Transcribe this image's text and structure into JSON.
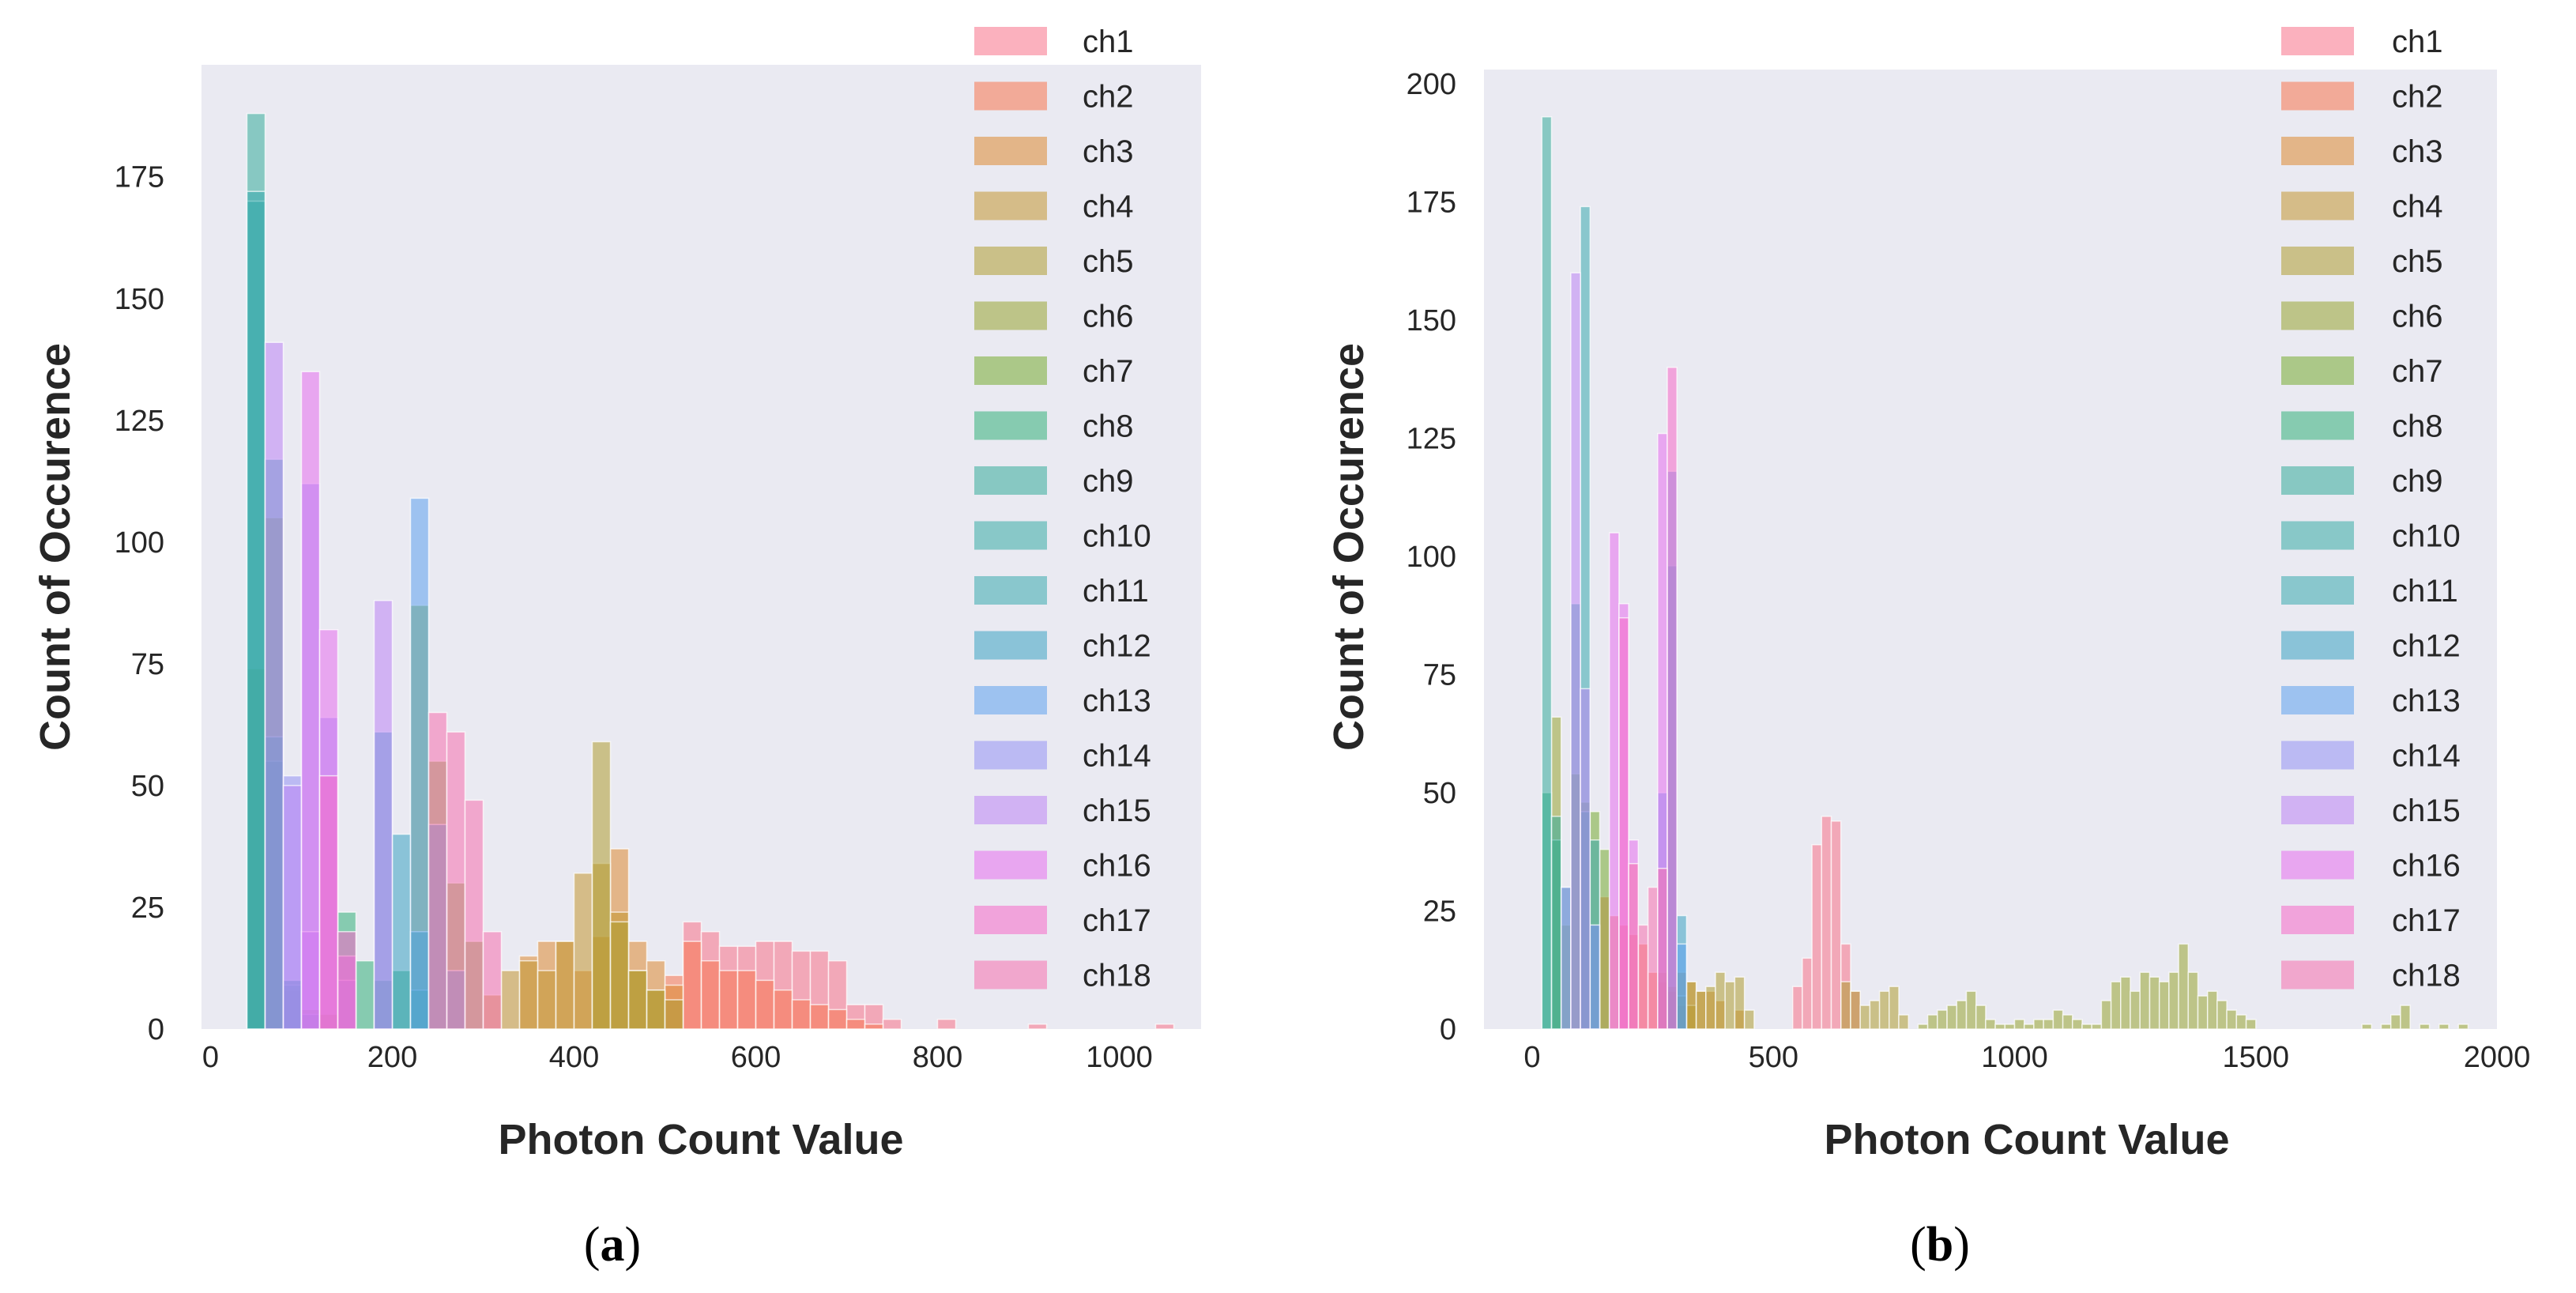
{
  "figure": {
    "caption_a": "a",
    "caption_b": "b"
  },
  "chart_data": [
    {
      "id": "a",
      "type": "histogram",
      "xlabel": "Photon Count Value",
      "ylabel": "Count of Occurence",
      "xlim": [
        -10,
        1090
      ],
      "ylim": [
        0,
        198
      ],
      "xticks": [
        0,
        200,
        400,
        600,
        800,
        1000
      ],
      "yticks": [
        0,
        25,
        50,
        75,
        100,
        125,
        150,
        175
      ],
      "bin_width": 20,
      "grid": false,
      "legend": "upper-right-outside",
      "series": [
        {
          "name": "ch1",
          "bars": [
            [
              520,
              22
            ],
            [
              540,
              20
            ],
            [
              560,
              17
            ],
            [
              580,
              17
            ],
            [
              600,
              18
            ],
            [
              620,
              18
            ],
            [
              640,
              16
            ],
            [
              660,
              16
            ],
            [
              680,
              14
            ],
            [
              700,
              5
            ],
            [
              720,
              5
            ],
            [
              740,
              2
            ],
            [
              800,
              2
            ],
            [
              900,
              1
            ],
            [
              1040,
              1
            ]
          ]
        },
        {
          "name": "ch2",
          "bars": [
            [
              500,
              11
            ],
            [
              520,
              18
            ],
            [
              540,
              14
            ],
            [
              560,
              12
            ],
            [
              580,
              12
            ],
            [
              600,
              10
            ],
            [
              620,
              8
            ],
            [
              640,
              6
            ],
            [
              660,
              5
            ],
            [
              680,
              4
            ],
            [
              700,
              2
            ],
            [
              720,
              1
            ]
          ]
        },
        {
          "name": "ch3",
          "bars": [
            [
              340,
              15
            ],
            [
              360,
              18
            ],
            [
              380,
              18
            ],
            [
              400,
              12
            ],
            [
              420,
              19
            ],
            [
              440,
              37
            ],
            [
              460,
              18
            ],
            [
              480,
              14
            ],
            [
              500,
              9
            ]
          ]
        },
        {
          "name": "ch4",
          "bars": [
            [
              300,
              7
            ],
            [
              320,
              12
            ],
            [
              340,
              14
            ],
            [
              360,
              12
            ],
            [
              380,
              18
            ],
            [
              400,
              32
            ],
            [
              420,
              34
            ],
            [
              440,
              24
            ],
            [
              460,
              12
            ],
            [
              480,
              8
            ]
          ]
        },
        {
          "name": "ch5",
          "bars": [
            [
              420,
              59
            ],
            [
              440,
              22
            ],
            [
              460,
              12
            ],
            [
              480,
              8
            ],
            [
              500,
              6
            ]
          ]
        },
        {
          "name": "ch6",
          "bars": [
            [
              40,
              74
            ],
            [
              60,
              105
            ],
            [
              80,
              8
            ],
            [
              100,
              4
            ],
            [
              120,
              3
            ]
          ]
        },
        {
          "name": "ch7",
          "bars": [
            [
              220,
              87
            ],
            [
              240,
              55
            ],
            [
              260,
              30
            ],
            [
              280,
              18
            ]
          ]
        },
        {
          "name": "ch8",
          "bars": [
            [
              140,
              24
            ],
            [
              160,
              14
            ],
            [
              180,
              10
            ],
            [
              200,
              12
            ],
            [
              220,
              8
            ]
          ]
        },
        {
          "name": "ch9",
          "bars": [
            [
              40,
              188
            ],
            [
              60,
              55
            ],
            [
              80,
              10
            ],
            [
              100,
              3
            ]
          ]
        },
        {
          "name": "ch10",
          "bars": [
            [
              40,
              170
            ],
            [
              60,
              60
            ],
            [
              80,
              9
            ]
          ]
        },
        {
          "name": "ch11",
          "bars": [
            [
              40,
              172
            ],
            [
              60,
              117
            ],
            [
              80,
              10
            ]
          ]
        },
        {
          "name": "ch12",
          "bars": [
            [
              180,
              61
            ],
            [
              200,
              40
            ],
            [
              220,
              20
            ]
          ]
        },
        {
          "name": "ch13",
          "bars": [
            [
              220,
              109
            ],
            [
              240,
              42
            ],
            [
              260,
              12
            ]
          ]
        },
        {
          "name": "ch14",
          "bars": [
            [
              80,
              52
            ],
            [
              100,
              112
            ],
            [
              120,
              64
            ],
            [
              140,
              10
            ]
          ]
        },
        {
          "name": "ch15",
          "bars": [
            [
              60,
              141
            ],
            [
              80,
              50
            ],
            [
              100,
              20
            ],
            [
              180,
              88
            ]
          ]
        },
        {
          "name": "ch16",
          "bars": [
            [
              100,
              135
            ],
            [
              120,
              82
            ],
            [
              140,
              15
            ]
          ]
        },
        {
          "name": "ch17",
          "bars": [
            [
              120,
              52
            ],
            [
              140,
              20
            ]
          ]
        },
        {
          "name": "ch18",
          "bars": [
            [
              240,
              65
            ],
            [
              260,
              61
            ],
            [
              280,
              47
            ],
            [
              300,
              20
            ]
          ]
        }
      ]
    },
    {
      "id": "b",
      "type": "histogram",
      "xlabel": "Photon Count Value",
      "ylabel": "Count of Occurence",
      "xlim": [
        -100,
        2000
      ],
      "ylim": [
        0,
        203
      ],
      "xticks": [
        0,
        500,
        1000,
        1500,
        2000
      ],
      "yticks": [
        0,
        25,
        50,
        75,
        100,
        125,
        150,
        175,
        200
      ],
      "bin_width": 20,
      "grid": false,
      "legend": "upper-right-outside",
      "series": [
        {
          "name": "ch1",
          "bars": [
            [
              540,
              9
            ],
            [
              560,
              15
            ],
            [
              580,
              39
            ],
            [
              600,
              45
            ],
            [
              620,
              44
            ],
            [
              640,
              18
            ],
            [
              660,
              8
            ]
          ]
        },
        {
          "name": "ch2",
          "bars": [
            [
              140,
              28
            ],
            [
              160,
              24
            ],
            [
              180,
              22
            ],
            [
              200,
              20
            ],
            [
              220,
              18
            ],
            [
              240,
              12
            ],
            [
              260,
              10
            ],
            [
              280,
              8
            ],
            [
              300,
              5
            ]
          ]
        },
        {
          "name": "ch3",
          "bars": [
            [
              300,
              12
            ],
            [
              320,
              10
            ],
            [
              340,
              8
            ],
            [
              360,
              8
            ],
            [
              380,
              6
            ],
            [
              420,
              4
            ]
          ]
        },
        {
          "name": "ch4",
          "bars": [
            [
              260,
              12
            ],
            [
              280,
              9
            ],
            [
              300,
              7
            ],
            [
              320,
              5
            ]
          ]
        },
        {
          "name": "ch5",
          "bars": [
            [
              320,
              10
            ],
            [
              340,
              8
            ],
            [
              360,
              9
            ],
            [
              380,
              12
            ],
            [
              400,
              10
            ],
            [
              420,
              11
            ],
            [
              440,
              4
            ],
            [
              640,
              10
            ],
            [
              660,
              8
            ],
            [
              680,
              5
            ],
            [
              700,
              6
            ],
            [
              720,
              8
            ],
            [
              740,
              9
            ],
            [
              760,
              3
            ]
          ]
        },
        {
          "name": "ch6",
          "bars": [
            [
              40,
              66
            ],
            [
              60,
              22
            ],
            [
              800,
              1
            ],
            [
              820,
              3
            ],
            [
              840,
              4
            ],
            [
              860,
              5
            ],
            [
              880,
              6
            ],
            [
              900,
              8
            ],
            [
              920,
              5
            ],
            [
              940,
              2
            ],
            [
              960,
              1
            ],
            [
              980,
              1
            ],
            [
              1000,
              2
            ],
            [
              1020,
              1
            ],
            [
              1040,
              2
            ],
            [
              1060,
              2
            ],
            [
              1080,
              4
            ],
            [
              1100,
              3
            ],
            [
              1120,
              2
            ],
            [
              1140,
              1
            ],
            [
              1160,
              1
            ],
            [
              1180,
              6
            ],
            [
              1200,
              10
            ],
            [
              1220,
              11
            ],
            [
              1240,
              8
            ],
            [
              1260,
              12
            ],
            [
              1280,
              11
            ],
            [
              1300,
              10
            ],
            [
              1320,
              12
            ],
            [
              1340,
              18
            ],
            [
              1360,
              12
            ],
            [
              1380,
              7
            ],
            [
              1400,
              8
            ],
            [
              1420,
              6
            ],
            [
              1440,
              4
            ],
            [
              1460,
              3
            ],
            [
              1480,
              2
            ],
            [
              1720,
              1
            ],
            [
              1760,
              1
            ],
            [
              1780,
              3
            ],
            [
              1800,
              5
            ],
            [
              1840,
              1
            ],
            [
              1880,
              1
            ],
            [
              1920,
              1
            ]
          ]
        },
        {
          "name": "ch7",
          "bars": [
            [
              80,
              54
            ],
            [
              100,
              48
            ],
            [
              120,
              46
            ],
            [
              140,
              38
            ]
          ]
        },
        {
          "name": "ch8",
          "bars": [
            [
              20,
              50
            ],
            [
              40,
              40
            ]
          ]
        },
        {
          "name": "ch9",
          "bars": [
            [
              20,
              193
            ],
            [
              40,
              45
            ],
            [
              60,
              30
            ]
          ]
        },
        {
          "name": "ch10",
          "bars": [
            [
              80,
              90
            ],
            [
              100,
              46
            ],
            [
              120,
              22
            ]
          ]
        },
        {
          "name": "ch11",
          "bars": [
            [
              100,
              174
            ],
            [
              120,
              40
            ]
          ]
        },
        {
          "name": "ch12",
          "bars": [
            [
              280,
              98
            ],
            [
              300,
              24
            ]
          ]
        },
        {
          "name": "ch13",
          "bars": [
            [
              260,
              50
            ],
            [
              280,
              118
            ],
            [
              300,
              18
            ]
          ]
        },
        {
          "name": "ch14",
          "bars": [
            [
              60,
              30
            ],
            [
              120,
              22
            ]
          ]
        },
        {
          "name": "ch15",
          "bars": [
            [
              80,
              160
            ],
            [
              100,
              72
            ]
          ]
        },
        {
          "name": "ch16",
          "bars": [
            [
              160,
              105
            ],
            [
              180,
              90
            ],
            [
              200,
              40
            ],
            [
              260,
              126
            ]
          ]
        },
        {
          "name": "ch17",
          "bars": [
            [
              180,
              87
            ],
            [
              280,
              140
            ]
          ]
        },
        {
          "name": "ch18",
          "bars": [
            [
              200,
              35
            ],
            [
              220,
              22
            ],
            [
              240,
              30
            ],
            [
              260,
              34
            ]
          ]
        }
      ]
    }
  ],
  "colors": {
    "panel_bg": "#EAEAF2",
    "series": [
      "#F77189",
      "#F7754F",
      "#DC8932",
      "#C39532",
      "#AE9D31",
      "#97A431",
      "#77AB31",
      "#33B07A",
      "#35AC9A",
      "#36ACA5",
      "#38AAAF",
      "#3BA3C3",
      "#5CA0EE",
      "#9491F4",
      "#BB83F4",
      "#E66EEE",
      "#F668C9",
      "#F56FAE"
    ]
  }
}
